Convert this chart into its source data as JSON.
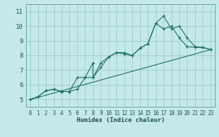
{
  "title": "",
  "xlabel": "Humidex (Indice chaleur)",
  "ylabel": "",
  "bg_color": "#c5e8e8",
  "grid_color": "#9ecece",
  "line_color": "#1a7060",
  "xlim": [
    -0.5,
    23.5
  ],
  "ylim": [
    4.5,
    11.5
  ],
  "xticks": [
    0,
    1,
    2,
    3,
    4,
    5,
    6,
    7,
    8,
    9,
    10,
    11,
    12,
    13,
    14,
    15,
    16,
    17,
    18,
    19,
    20,
    21,
    22,
    23
  ],
  "yticks": [
    5,
    6,
    7,
    8,
    9,
    10,
    11
  ],
  "curve1_x": [
    0,
    1,
    2,
    3,
    4,
    4,
    5,
    5,
    6,
    7,
    8,
    8,
    9,
    10,
    11,
    12,
    13,
    14,
    15,
    16,
    17,
    18,
    19,
    20,
    21,
    22,
    23
  ],
  "curve1_y": [
    5.0,
    5.2,
    5.6,
    5.7,
    5.55,
    5.55,
    5.55,
    5.55,
    6.5,
    6.5,
    7.5,
    6.5,
    7.5,
    7.9,
    8.2,
    8.1,
    8.0,
    8.5,
    8.8,
    10.2,
    10.7,
    9.8,
    10.0,
    9.2,
    8.6,
    8.55,
    8.4
  ],
  "curve2_x": [
    0,
    1,
    2,
    3,
    4,
    5,
    6,
    7,
    8,
    9,
    10,
    11,
    12,
    13,
    14,
    15,
    16,
    17,
    18,
    19,
    20,
    21,
    22,
    23
  ],
  "curve2_y": [
    5.0,
    5.2,
    5.6,
    5.7,
    5.55,
    5.55,
    5.7,
    6.5,
    6.5,
    7.2,
    7.9,
    8.2,
    8.2,
    8.0,
    8.5,
    8.8,
    10.2,
    9.8,
    10.0,
    9.2,
    8.6,
    8.55,
    8.55,
    8.4
  ],
  "line_x": [
    0,
    23
  ],
  "line_y": [
    5.0,
    8.4
  ],
  "xlabel_fontsize": 6.5,
  "tick_fontsize_x": 5.5,
  "tick_fontsize_y": 6.5
}
